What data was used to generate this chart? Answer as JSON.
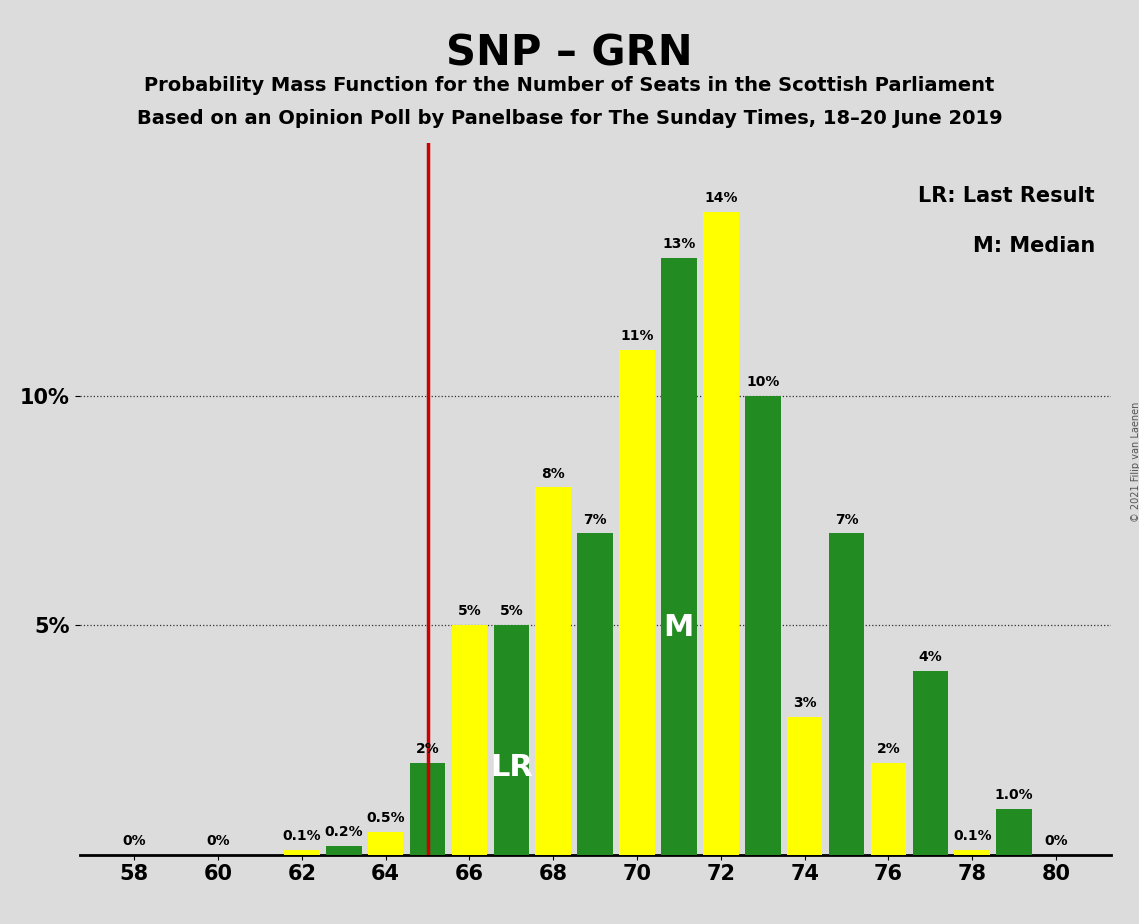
{
  "title": "SNP – GRN",
  "subtitle1": "Probability Mass Function for the Number of Seats in the Scottish Parliament",
  "subtitle2": "Based on an Opinion Poll by Panelbase for The Sunday Times, 18–20 June 2019",
  "copyright": "© 2021 Filip van Laenen",
  "legend_lr": "LR: Last Result",
  "legend_m": "M: Median",
  "background_color": "#dcdcdc",
  "yellow_color": "#ffff00",
  "green_color": "#228B22",
  "red_color": "#cc0000",
  "lr_line_x": 65,
  "lr_text_seat": 67,
  "median_text_seat": 71,
  "seats": [
    58,
    59,
    60,
    61,
    62,
    63,
    64,
    65,
    66,
    67,
    68,
    69,
    70,
    71,
    72,
    73,
    74,
    75,
    76,
    77,
    78,
    79,
    80
  ],
  "values": [
    0.0,
    0.0,
    0.0,
    0.0,
    0.1,
    0.2,
    0.5,
    2.0,
    5.0,
    5.0,
    8.0,
    7.0,
    11.0,
    13.0,
    14.0,
    10.0,
    3.0,
    7.0,
    2.0,
    4.0,
    0.1,
    1.0,
    0.0
  ],
  "bar_colors": [
    "#ffff00",
    "#228B22",
    "#ffff00",
    "#228B22",
    "#ffff00",
    "#228B22",
    "#ffff00",
    "#228B22",
    "#ffff00",
    "#228B22",
    "#ffff00",
    "#228B22",
    "#ffff00",
    "#228B22",
    "#ffff00",
    "#228B22",
    "#ffff00",
    "#228B22",
    "#ffff00",
    "#228B22",
    "#ffff00",
    "#228B22",
    "#ffff00"
  ],
  "label_vals": [
    "0%",
    "",
    "0%",
    "",
    "0.1%",
    "0.2%",
    "0.5%",
    "2%",
    "5%",
    "5%",
    "8%",
    "7%",
    "11%",
    "13%",
    "14%",
    "10%",
    "3%",
    "7%",
    "2%",
    "4%",
    "0.1%",
    "1.0%",
    "0%"
  ],
  "ylim": [
    0,
    15.5
  ],
  "ytick_positions": [
    5,
    10
  ],
  "ytick_labels": [
    "5%",
    "10%"
  ],
  "xtick_positions": [
    58,
    60,
    62,
    64,
    66,
    68,
    70,
    72,
    74,
    76,
    78,
    80
  ],
  "bar_width": 0.85,
  "grid_linestyle": ":",
  "grid_color": "#333333",
  "title_fontsize": 30,
  "subtitle_fontsize": 14,
  "tick_fontsize": 15,
  "label_fontsize": 10,
  "legend_fontsize": 15
}
